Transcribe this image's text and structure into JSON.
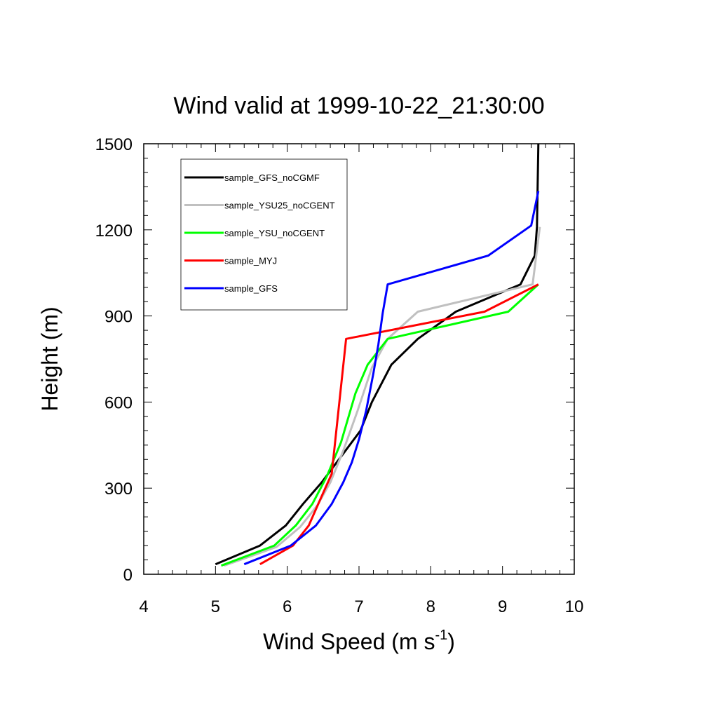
{
  "chart_data": {
    "type": "line",
    "title": "Wind valid at 1999-10-22_21:30:00",
    "xlabel": "Wind Speed (m s",
    "xlabel_superscript": "-1",
    "xlabel_suffix": ")",
    "ylabel": "Height (m)",
    "xlim": [
      4,
      10
    ],
    "ylim": [
      0,
      1500
    ],
    "xticks": [
      4,
      5,
      6,
      7,
      8,
      9,
      10
    ],
    "xtick_labels": [
      "4",
      "5",
      "6",
      "7",
      "8",
      "9",
      "10"
    ],
    "yticks": [
      0,
      300,
      600,
      900,
      1200,
      1500
    ],
    "ytick_labels": [
      "0",
      "300",
      "600",
      "900",
      "1200",
      "1500"
    ],
    "grid": false,
    "legend_position": "top-left",
    "series": [
      {
        "name": "sample_GFS_noCGMF",
        "color": "#000000",
        "x": [
          5.0,
          5.62,
          5.98,
          6.22,
          6.48,
          6.75,
          7.02,
          7.18,
          7.45,
          7.82,
          8.35,
          9.25,
          9.45,
          9.48,
          9.5
        ],
        "y": [
          35,
          100,
          170,
          245,
          320,
          410,
          500,
          600,
          730,
          820,
          915,
          1010,
          1110,
          1210,
          1500
        ]
      },
      {
        "name": "sample_YSU25_noCGENT",
        "color": "#c0c0c0",
        "x": [
          5.12,
          5.85,
          6.18,
          6.42,
          6.6,
          6.78,
          6.98,
          7.18,
          7.4,
          7.82,
          9.42,
          9.52
        ],
        "y": [
          30,
          95,
          165,
          240,
          320,
          430,
          570,
          720,
          820,
          915,
          1010,
          1210
        ]
      },
      {
        "name": "sample_YSU_noCGENT",
        "color": "#00ff00",
        "x": [
          5.08,
          5.82,
          6.12,
          6.35,
          6.55,
          6.75,
          6.95,
          7.12,
          7.4,
          9.08,
          9.5
        ],
        "y": [
          30,
          100,
          170,
          245,
          340,
          460,
          630,
          730,
          820,
          915,
          1010
        ]
      },
      {
        "name": "sample_MYJ",
        "color": "#ff0000",
        "x": [
          5.62,
          6.08,
          6.3,
          6.45,
          6.62,
          6.82,
          8.75,
          9.5
        ],
        "y": [
          35,
          100,
          170,
          255,
          350,
          820,
          915,
          1010
        ]
      },
      {
        "name": "sample_GFS",
        "color": "#0000ff",
        "x": [
          5.4,
          6.05,
          6.4,
          6.62,
          6.78,
          6.9,
          7.0,
          7.1,
          7.2,
          7.27,
          7.33,
          7.4,
          8.8,
          9.4,
          9.5
        ],
        "y": [
          35,
          100,
          170,
          245,
          320,
          390,
          470,
          570,
          700,
          800,
          910,
          1010,
          1110,
          1215,
          1335
        ]
      }
    ]
  }
}
